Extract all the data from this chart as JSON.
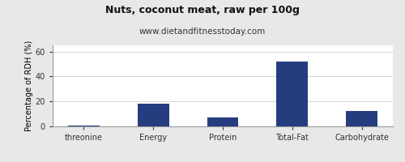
{
  "title": "Nuts, coconut meat, raw per 100g",
  "subtitle": "www.dietandfitnesstoday.com",
  "ylabel": "Percentage of RDH (%)",
  "categories": [
    "threonine",
    "Energy",
    "Protein",
    "Total-Fat",
    "Carbohydrate"
  ],
  "values": [
    0.4,
    18.0,
    7.0,
    52.0,
    12.5
  ],
  "bar_color": "#253d7f",
  "ylim": [
    0,
    65
  ],
  "yticks": [
    0,
    20,
    40,
    60
  ],
  "background_color": "#e8e8e8",
  "plot_bg_color": "#ffffff",
  "title_fontsize": 9,
  "subtitle_fontsize": 7.5,
  "ylabel_fontsize": 7,
  "tick_fontsize": 7
}
